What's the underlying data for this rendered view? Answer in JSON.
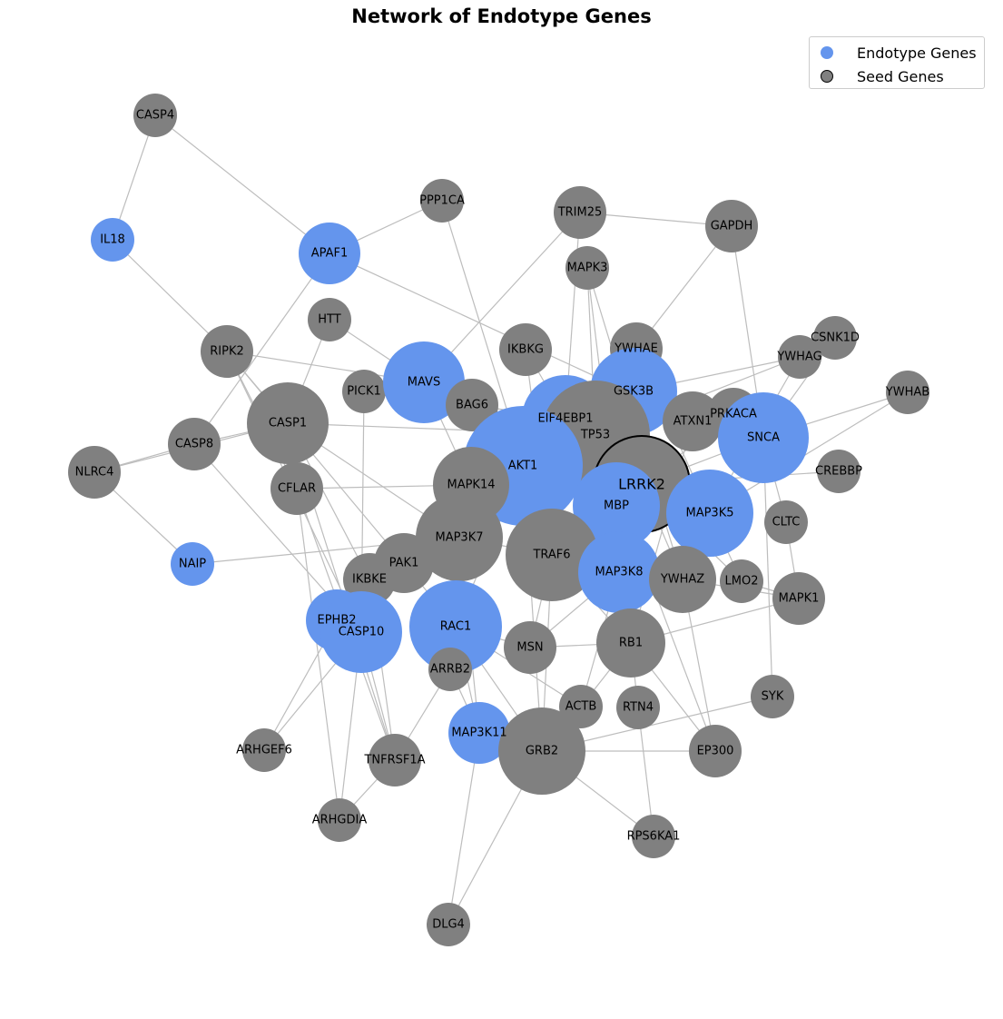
{
  "title": "Network of Endotype Genes",
  "legend": {
    "endotype_label": "Endotype Genes",
    "seed_label": "Seed Genes"
  },
  "colors": {
    "endotype": "#6495ed",
    "seed": "#808080",
    "edge": "#bdbdbd",
    "highlight_border": "#000000"
  },
  "nodes": [
    {
      "id": "CASP4",
      "type": "seed"
    },
    {
      "id": "PPP1CA",
      "type": "seed"
    },
    {
      "id": "TRIM25",
      "type": "seed"
    },
    {
      "id": "GAPDH",
      "type": "seed"
    },
    {
      "id": "IL18",
      "type": "endotype"
    },
    {
      "id": "APAF1",
      "type": "endotype"
    },
    {
      "id": "MAPK3",
      "type": "seed"
    },
    {
      "id": "HTT",
      "type": "seed"
    },
    {
      "id": "RIPK2",
      "type": "seed"
    },
    {
      "id": "IKBKG",
      "type": "seed"
    },
    {
      "id": "YWHAE",
      "type": "seed"
    },
    {
      "id": "CSNK1D",
      "type": "seed"
    },
    {
      "id": "YWHAG",
      "type": "seed"
    },
    {
      "id": "YWHAB",
      "type": "seed"
    },
    {
      "id": "PICK1",
      "type": "seed"
    },
    {
      "id": "MAVS",
      "type": "endotype"
    },
    {
      "id": "BAG6",
      "type": "seed"
    },
    {
      "id": "GSK3B",
      "type": "endotype"
    },
    {
      "id": "CASP1",
      "type": "seed"
    },
    {
      "id": "EIF4EBP1",
      "type": "endotype"
    },
    {
      "id": "TP53",
      "type": "seed"
    },
    {
      "id": "ATXN1",
      "type": "seed"
    },
    {
      "id": "PRKACA",
      "type": "seed"
    },
    {
      "id": "SNCA",
      "type": "endotype"
    },
    {
      "id": "CASP8",
      "type": "seed"
    },
    {
      "id": "NLRC4",
      "type": "seed"
    },
    {
      "id": "AKT1",
      "type": "endotype"
    },
    {
      "id": "LRRK2",
      "type": "seed"
    },
    {
      "id": "CREBBP",
      "type": "seed"
    },
    {
      "id": "CFLAR",
      "type": "seed"
    },
    {
      "id": "MAPK14",
      "type": "seed"
    },
    {
      "id": "MBP",
      "type": "endotype"
    },
    {
      "id": "MAP3K5",
      "type": "endotype"
    },
    {
      "id": "CLTC",
      "type": "seed"
    },
    {
      "id": "MAP3K7",
      "type": "seed"
    },
    {
      "id": "TRAF6",
      "type": "seed"
    },
    {
      "id": "NAIP",
      "type": "endotype"
    },
    {
      "id": "PAK1",
      "type": "seed"
    },
    {
      "id": "MAP3K8",
      "type": "endotype"
    },
    {
      "id": "YWHAZ",
      "type": "seed"
    },
    {
      "id": "LMO2",
      "type": "seed"
    },
    {
      "id": "MAPK1",
      "type": "seed"
    },
    {
      "id": "IKBKE",
      "type": "seed"
    },
    {
      "id": "EPHB2",
      "type": "endotype"
    },
    {
      "id": "CASP10",
      "type": "endotype"
    },
    {
      "id": "RAC1",
      "type": "endotype"
    },
    {
      "id": "MSN",
      "type": "seed"
    },
    {
      "id": "RB1",
      "type": "seed"
    },
    {
      "id": "ARRB2",
      "type": "seed"
    },
    {
      "id": "ACTB",
      "type": "seed"
    },
    {
      "id": "RTN4",
      "type": "seed"
    },
    {
      "id": "SYK",
      "type": "seed"
    },
    {
      "id": "ARHGEF6",
      "type": "seed"
    },
    {
      "id": "MAP3K11",
      "type": "endotype"
    },
    {
      "id": "GRB2",
      "type": "seed"
    },
    {
      "id": "EP300",
      "type": "seed"
    },
    {
      "id": "TNFRSF1A",
      "type": "seed"
    },
    {
      "id": "ARHGDIA",
      "type": "seed"
    },
    {
      "id": "RPS6KA1",
      "type": "seed"
    },
    {
      "id": "DLG4",
      "type": "seed"
    }
  ],
  "edges": [
    [
      "CASP4",
      "IL18"
    ],
    [
      "CASP4",
      "APAF1"
    ],
    [
      "IL18",
      "RIPK2"
    ],
    [
      "APAF1",
      "PPP1CA"
    ],
    [
      "APAF1",
      "CASP8"
    ],
    [
      "APAF1",
      "ATXN1"
    ],
    [
      "PPP1CA",
      "TRAF6"
    ],
    [
      "TRIM25",
      "GAPDH"
    ],
    [
      "TRIM25",
      "MAVS"
    ],
    [
      "TRIM25",
      "EIF4EBP1"
    ],
    [
      "GAPDH",
      "YWHAE"
    ],
    [
      "GAPDH",
      "SNCA"
    ],
    [
      "MAPK3",
      "TP53"
    ],
    [
      "MAPK3",
      "YWHAZ"
    ],
    [
      "MAPK3",
      "MBP"
    ],
    [
      "HTT",
      "CASP1"
    ],
    [
      "HTT",
      "MAVS"
    ],
    [
      "RIPK2",
      "MAVS"
    ],
    [
      "RIPK2",
      "CASP1"
    ],
    [
      "RIPK2",
      "CFLAR"
    ],
    [
      "RIPK2",
      "PAK1"
    ],
    [
      "RIPK2",
      "CASP10"
    ],
    [
      "IKBKG",
      "EIF4EBP1"
    ],
    [
      "IKBKG",
      "TRAF6"
    ],
    [
      "YWHAE",
      "GSK3B"
    ],
    [
      "YWHAE",
      "MAP3K5"
    ],
    [
      "CSNK1D",
      "YWHAG"
    ],
    [
      "CSNK1D",
      "SNCA"
    ],
    [
      "YWHAG",
      "AKT1"
    ],
    [
      "YWHAG",
      "MAP3K5"
    ],
    [
      "YWHAG",
      "GSK3B"
    ],
    [
      "YWHAB",
      "SNCA"
    ],
    [
      "YWHAB",
      "MAP3K5"
    ],
    [
      "PICK1",
      "CASP10"
    ],
    [
      "MAVS",
      "MAPK14"
    ],
    [
      "MAVS",
      "BAG6"
    ],
    [
      "BAG6",
      "EIF4EBP1"
    ],
    [
      "GSK3B",
      "MBP"
    ],
    [
      "GSK3B",
      "TP53"
    ],
    [
      "CASP1",
      "TP53"
    ],
    [
      "CASP1",
      "CASP8"
    ],
    [
      "CASP1",
      "MAP3K7"
    ],
    [
      "EIF4EBP1",
      "AKT1"
    ],
    [
      "EIF4EBP1",
      "GSK3B"
    ],
    [
      "TP53",
      "LRRK2"
    ],
    [
      "TP53",
      "RB1"
    ],
    [
      "TP53",
      "EP300"
    ],
    [
      "ATXN1",
      "PRKACA"
    ],
    [
      "ATXN1",
      "RB1"
    ],
    [
      "PRKACA",
      "SNCA"
    ],
    [
      "PRKACA",
      "LRRK2"
    ],
    [
      "SNCA",
      "CLTC"
    ],
    [
      "SNCA",
      "SYK"
    ],
    [
      "SNCA",
      "LRRK2"
    ],
    [
      "CASP8",
      "NLRC4"
    ],
    [
      "CASP8",
      "CASP10"
    ],
    [
      "NLRC4",
      "NAIP"
    ],
    [
      "NLRC4",
      "CASP1"
    ],
    [
      "AKT1",
      "MAPK14"
    ],
    [
      "AKT1",
      "RAC1"
    ],
    [
      "AKT1",
      "LRRK2"
    ],
    [
      "AKT1",
      "GRB2"
    ],
    [
      "LRRK2",
      "CREBBP"
    ],
    [
      "LRRK2",
      "YWHAZ"
    ],
    [
      "LRRK2",
      "LMO2"
    ],
    [
      "CFLAR",
      "MAPK14"
    ],
    [
      "CFLAR",
      "TNFRSF1A"
    ],
    [
      "CFLAR",
      "ARHGDIA"
    ],
    [
      "MAPK14",
      "MAP3K7"
    ],
    [
      "MBP",
      "MAP3K8"
    ],
    [
      "MAP3K5",
      "TRAF6"
    ],
    [
      "MAP3K5",
      "LMO2"
    ],
    [
      "CLTC",
      "MAPK1"
    ],
    [
      "MAP3K7",
      "TRAF6"
    ],
    [
      "MAP3K7",
      "RAC1"
    ],
    [
      "TRAF6",
      "MAP3K8"
    ],
    [
      "TRAF6",
      "RB1"
    ],
    [
      "TRAF6",
      "MSN"
    ],
    [
      "TRAF6",
      "GRB2"
    ],
    [
      "NAIP",
      "MAP3K7"
    ],
    [
      "PAK1",
      "RAC1"
    ],
    [
      "PAK1",
      "IKBKE"
    ],
    [
      "MAP3K8",
      "RB1"
    ],
    [
      "MAP3K8",
      "MSN"
    ],
    [
      "YWHAZ",
      "MAPK1"
    ],
    [
      "YWHAZ",
      "EP300"
    ],
    [
      "LMO2",
      "MAPK1"
    ],
    [
      "MAPK1",
      "RB1"
    ],
    [
      "IKBKE",
      "TNFRSF1A"
    ],
    [
      "EPHB2",
      "CASP10"
    ],
    [
      "EPHB2",
      "ARHGEF6"
    ],
    [
      "CASP10",
      "ARHGEF6"
    ],
    [
      "CASP10",
      "TNFRSF1A"
    ],
    [
      "RAC1",
      "ARRB2"
    ],
    [
      "RAC1",
      "MSN"
    ],
    [
      "RAC1",
      "ACTB"
    ],
    [
      "RAC1",
      "MAP3K11"
    ],
    [
      "MSN",
      "RB1"
    ],
    [
      "RB1",
      "ACTB"
    ],
    [
      "RB1",
      "RTN4"
    ],
    [
      "RB1",
      "EP300"
    ],
    [
      "ARRB2",
      "TNFRSF1A"
    ],
    [
      "ARRB2",
      "MAP3K11"
    ],
    [
      "ACTB",
      "MAP3K8"
    ],
    [
      "RTN4",
      "RPS6KA1"
    ],
    [
      "SYK",
      "GRB2"
    ],
    [
      "ARHGDIA",
      "CASP10"
    ],
    [
      "ARHGDIA",
      "TNFRSF1A"
    ],
    [
      "MAP3K11",
      "GRB2"
    ],
    [
      "MAP3K11",
      "MAP3K7"
    ],
    [
      "MAP3K11",
      "DLG4"
    ],
    [
      "GRB2",
      "EP300"
    ],
    [
      "GRB2",
      "RPS6KA1"
    ],
    [
      "GRB2",
      "DLG4"
    ],
    [
      "GRB2",
      "RAC1"
    ],
    [
      "TNFRSF1A",
      "CASP1"
    ],
    [
      "IKBKE",
      "CASP1"
    ]
  ]
}
